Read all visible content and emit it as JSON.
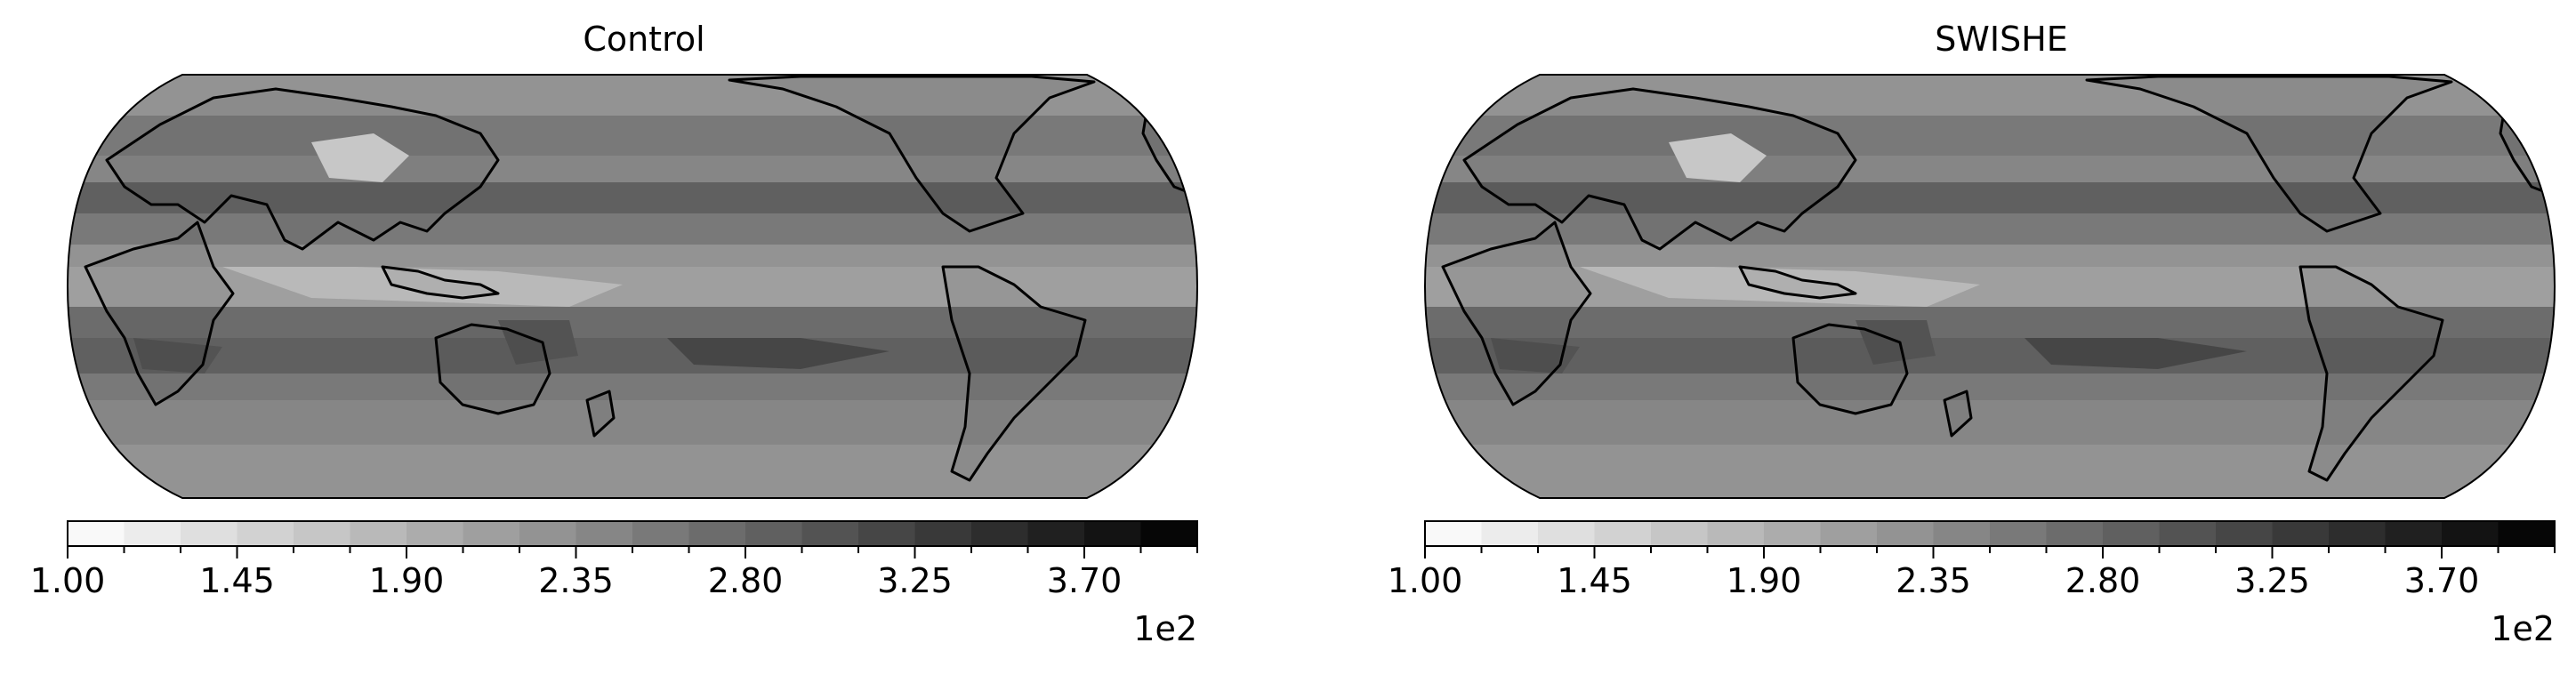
{
  "chart_data": [
    {
      "type": "heatmap",
      "title": "Control",
      "projection": "Robinson-like, Pacific-centered",
      "colormap": "Greys",
      "colorbar": {
        "orientation": "horizontal",
        "vmin": 100,
        "vmax": 400,
        "levels": 20,
        "tick_values": [
          100,
          145,
          190,
          235,
          280,
          325,
          370
        ],
        "tick_labels": [
          "1.00",
          "1.45",
          "1.90",
          "2.35",
          "2.80",
          "3.25",
          "3.70"
        ],
        "offset_label": "1e2"
      }
    },
    {
      "type": "heatmap",
      "title": "SWISHE",
      "projection": "Robinson-like, Pacific-centered",
      "colormap": "Greys",
      "colorbar": {
        "orientation": "horizontal",
        "vmin": 100,
        "vmax": 400,
        "levels": 20,
        "tick_values": [
          100,
          145,
          190,
          235,
          280,
          325,
          370
        ],
        "tick_labels": [
          "1.00",
          "1.45",
          "1.90",
          "2.35",
          "2.80",
          "3.25",
          "3.70"
        ],
        "offset_label": "1e2"
      }
    }
  ]
}
